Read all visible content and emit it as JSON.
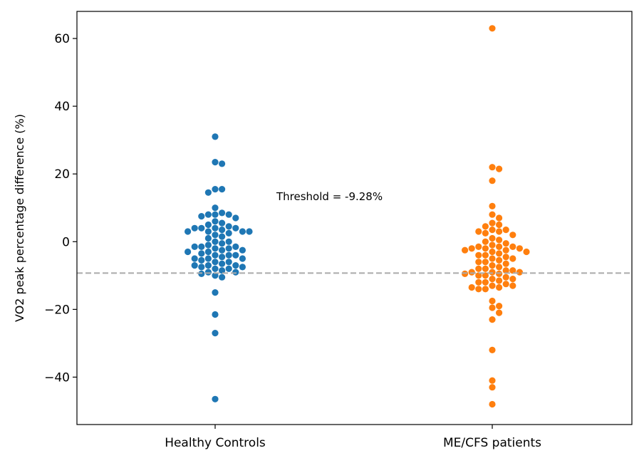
{
  "chart_data": {
    "type": "scatter",
    "subtype": "swarm",
    "title": "",
    "xlabel": "",
    "ylabel": "VO2 peak percentage difference (%)",
    "categories": [
      "Healthy Controls",
      "ME/CFS patients"
    ],
    "ylim": [
      -54,
      68
    ],
    "yticks": [
      -40,
      -20,
      0,
      20,
      40,
      60
    ],
    "ytick_labels": [
      "−40",
      "−20",
      "0",
      "20",
      "40",
      "60"
    ],
    "threshold": {
      "value": -9.28,
      "label": "Threshold = -9.28%",
      "color": "#aaaaaa",
      "style": "dashed"
    },
    "series": [
      {
        "name": "Healthy Controls",
        "color": "#1f77b4",
        "values": [
          31,
          23.5,
          23,
          15.5,
          15.5,
          14.5,
          10,
          8.5,
          8,
          8,
          8,
          7.5,
          7,
          6,
          5.5,
          5,
          4.5,
          4,
          4,
          4,
          4,
          3.5,
          3,
          3,
          3,
          3,
          2.5,
          2,
          1.5,
          1,
          0,
          0,
          -0.5,
          -1,
          -1.5,
          -1.5,
          -1.5,
          -2,
          -2,
          -2.5,
          -2.5,
          -3,
          -3,
          -3.5,
          -4,
          -4,
          -4,
          -4.5,
          -5,
          -5,
          -5,
          -5.5,
          -6,
          -6,
          -6.5,
          -7,
          -7,
          -7,
          -7.5,
          -7.5,
          -8,
          -8,
          -8.5,
          -9,
          -9,
          -9.5,
          -10,
          -10.5,
          -15,
          -21.5,
          -27,
          -46.5
        ]
      },
      {
        "name": "ME/CFS patients",
        "color": "#ff7f0e",
        "values": [
          63,
          22,
          21.5,
          18,
          10.5,
          8,
          7,
          5.5,
          5,
          4.5,
          3.5,
          3.5,
          3,
          3,
          2.5,
          2,
          1,
          0.5,
          0,
          -0.5,
          -1,
          -1.5,
          -1.5,
          -1.5,
          -2,
          -2,
          -2,
          -2.5,
          -2.5,
          -3,
          -3,
          -3.5,
          -4,
          -4,
          -4.5,
          -5,
          -5,
          -5.5,
          -6,
          -6,
          -6.5,
          -7,
          -7.5,
          -8,
          -8,
          -8.5,
          -8.5,
          -9,
          -9,
          -9,
          -9.5,
          -9.5,
          -10,
          -10,
          -10.5,
          -11,
          -11,
          -11.5,
          -12,
          -12,
          -12.5,
          -13,
          -13,
          -13.5,
          -13.5,
          -14,
          -14,
          -17.5,
          -19,
          -19.5,
          -21,
          -23,
          -32,
          -41,
          -43,
          -48
        ]
      }
    ]
  }
}
